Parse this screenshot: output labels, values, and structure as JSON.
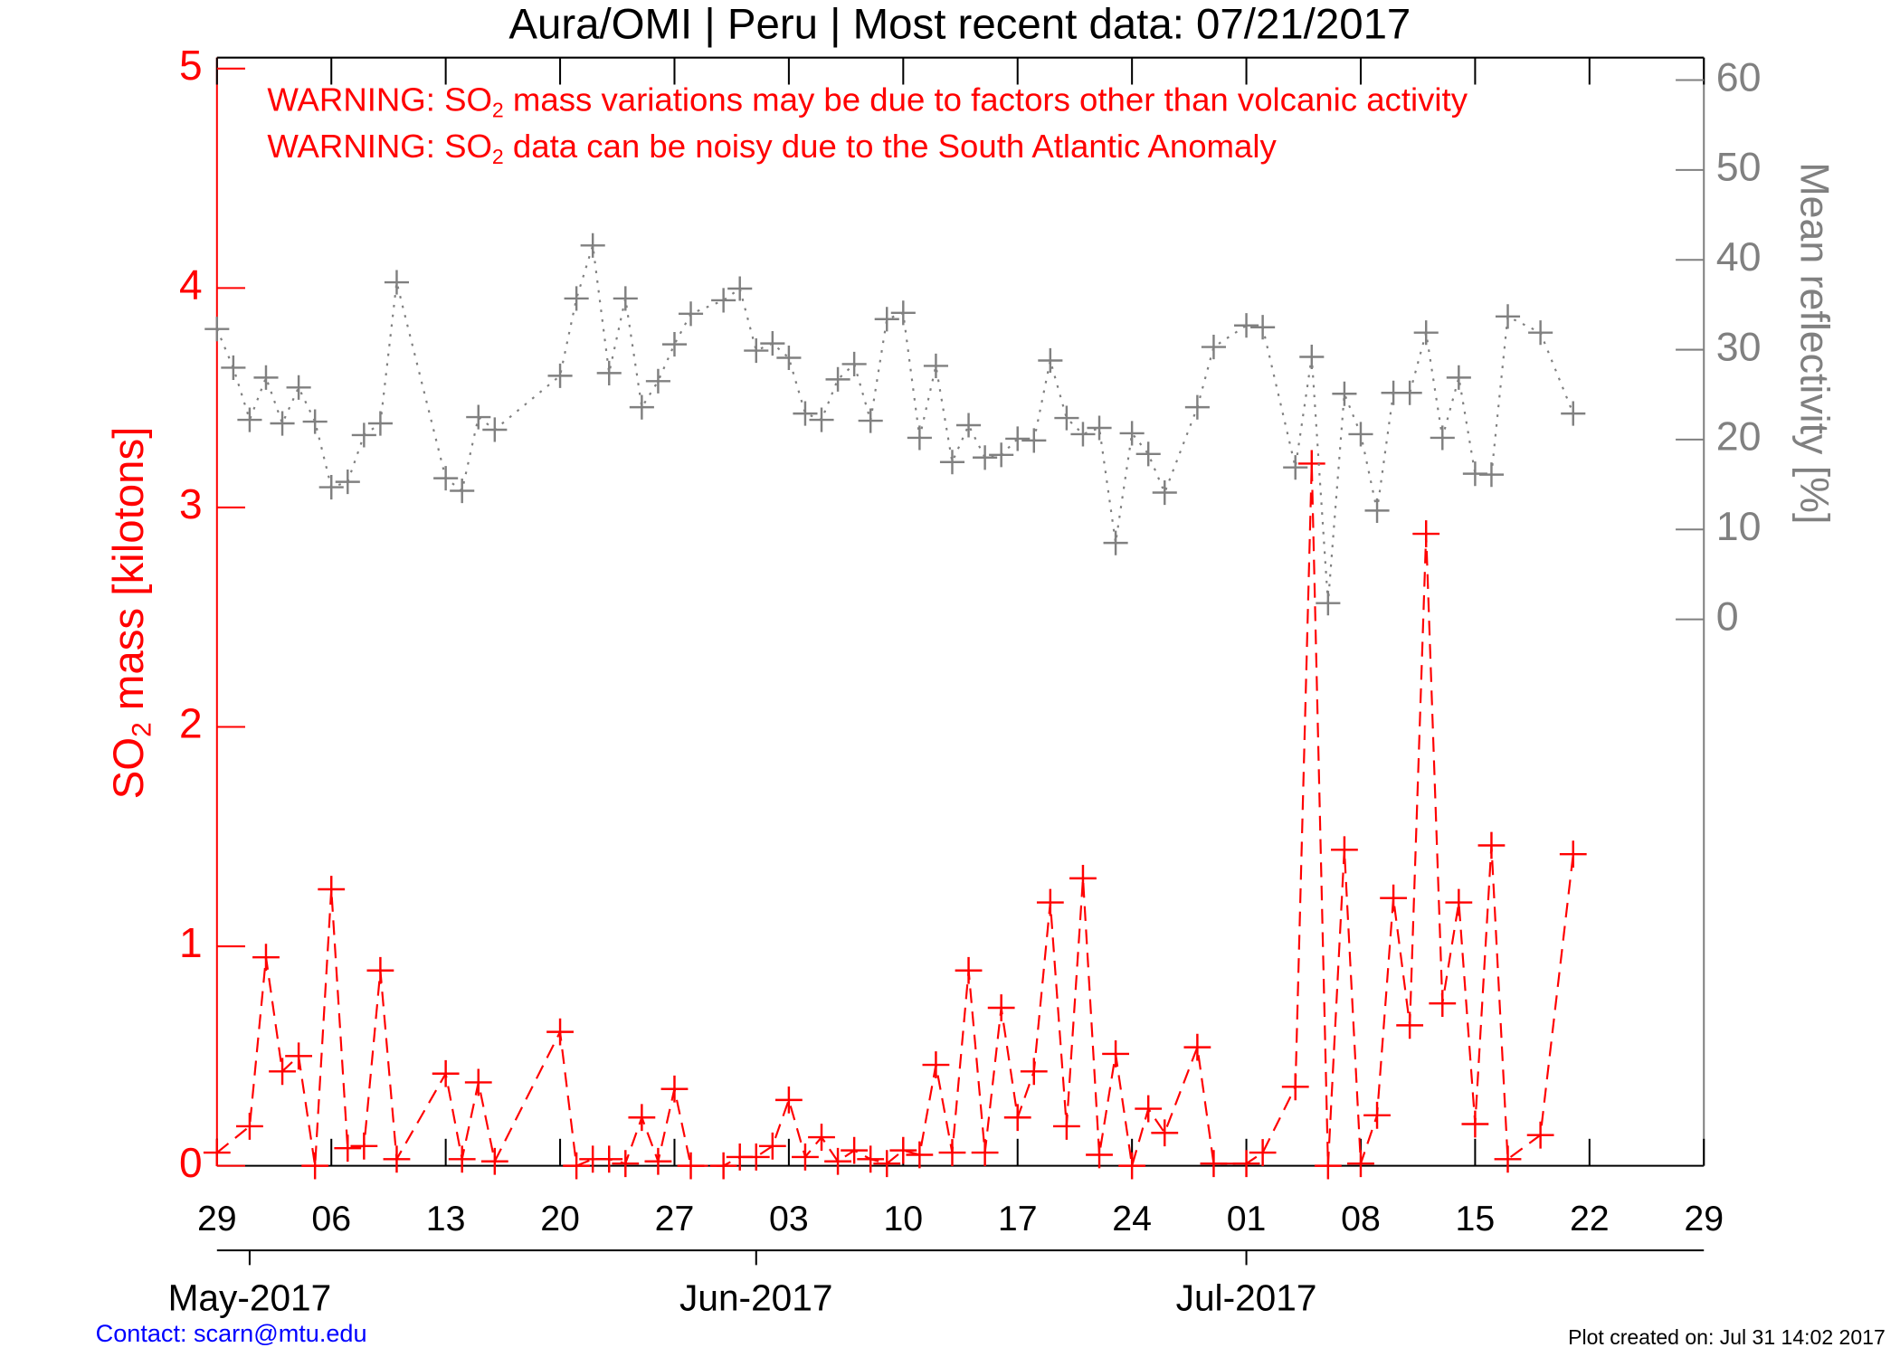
{
  "chart_data": {
    "type": "line",
    "title": "Aura/OMI | Peru | Most recent data: 07/21/2017",
    "warnings": [
      {
        "prefix": "WARNING: SO",
        "sub": "2",
        "suffix": " mass variations may be due to factors other than volcanic activity"
      },
      {
        "prefix": "WARNING: SO",
        "sub": "2",
        "suffix": " data can be noisy due to the South Atlantic Anomaly"
      }
    ],
    "ylabel": {
      "prefix": "SO",
      "sub": "2",
      "suffix": " mass [kilotons]"
    },
    "y2label": "Mean reflectivity [%]",
    "contact": "Contact: scarn@mtu.edu",
    "created": "Plot created on: Jul 31 14:02 2017",
    "xlim": [
      "2017-04-29",
      "2017-07-29"
    ],
    "xticks": [
      {
        "value": "2017-04-29",
        "label": "29"
      },
      {
        "value": "2017-05-06",
        "label": "06"
      },
      {
        "value": "2017-05-13",
        "label": "13"
      },
      {
        "value": "2017-05-20",
        "label": "20"
      },
      {
        "value": "2017-05-27",
        "label": "27"
      },
      {
        "value": "2017-06-03",
        "label": "03"
      },
      {
        "value": "2017-06-10",
        "label": "10"
      },
      {
        "value": "2017-06-17",
        "label": "17"
      },
      {
        "value": "2017-06-24",
        "label": "24"
      },
      {
        "value": "2017-07-01",
        "label": "01"
      },
      {
        "value": "2017-07-08",
        "label": "08"
      },
      {
        "value": "2017-07-15",
        "label": "15"
      },
      {
        "value": "2017-07-22",
        "label": "22"
      },
      {
        "value": "2017-07-29",
        "label": "29"
      }
    ],
    "month_ticks": [
      {
        "value": "2017-05-01",
        "label": "May-2017"
      },
      {
        "value": "2017-06-01",
        "label": "Jun-2017"
      },
      {
        "value": "2017-07-01",
        "label": "Jul-2017"
      }
    ],
    "ylim": [
      0,
      5.05
    ],
    "yticks": [
      0,
      1,
      2,
      3,
      4,
      5
    ],
    "y2lim": [
      -60.8,
      62.5
    ],
    "y2ticks": [
      0,
      10,
      20,
      30,
      40,
      50,
      60
    ],
    "series": [
      {
        "color": "#ff0000",
        "axis": "y",
        "dash": "12,7",
        "marker_size": 11,
        "x": [
          "2017-04-29",
          "2017-05-01",
          "2017-05-02",
          "2017-05-03",
          "2017-05-04",
          "2017-05-05",
          "2017-05-06",
          "2017-05-07",
          "2017-05-08",
          "2017-05-09",
          "2017-05-10",
          "2017-05-13",
          "2017-05-14",
          "2017-05-15",
          "2017-05-16",
          "2017-05-20",
          "2017-05-21",
          "2017-05-22",
          "2017-05-23",
          "2017-05-24",
          "2017-05-25",
          "2017-05-26",
          "2017-05-27",
          "2017-05-28",
          "2017-05-30",
          "2017-05-31",
          "2017-06-01",
          "2017-06-02",
          "2017-06-03",
          "2017-06-04",
          "2017-06-05",
          "2017-06-06",
          "2017-06-07",
          "2017-06-08",
          "2017-06-09",
          "2017-06-10",
          "2017-06-11",
          "2017-06-12",
          "2017-06-13",
          "2017-06-14",
          "2017-06-15",
          "2017-06-16",
          "2017-06-17",
          "2017-06-18",
          "2017-06-19",
          "2017-06-20",
          "2017-06-21",
          "2017-06-22",
          "2017-06-23",
          "2017-06-24",
          "2017-06-25",
          "2017-06-26",
          "2017-06-28",
          "2017-06-29",
          "2017-07-01",
          "2017-07-02",
          "2017-07-04",
          "2017-07-05",
          "2017-07-06",
          "2017-07-07",
          "2017-07-08",
          "2017-07-09",
          "2017-07-10",
          "2017-07-11",
          "2017-07-12",
          "2017-07-13",
          "2017-07-14",
          "2017-07-15",
          "2017-07-16",
          "2017-07-17",
          "2017-07-19",
          "2017-07-21"
        ],
        "values": [
          0.06,
          0.18,
          0.95,
          0.43,
          0.5,
          0.0,
          1.26,
          0.08,
          0.09,
          0.89,
          0.03,
          0.42,
          0.03,
          0.38,
          0.02,
          0.61,
          0.0,
          0.03,
          0.03,
          0.01,
          0.22,
          0.02,
          0.35,
          0.0,
          0.0,
          0.04,
          0.04,
          0.09,
          0.3,
          0.04,
          0.13,
          0.02,
          0.07,
          0.03,
          0.01,
          0.07,
          0.05,
          0.46,
          0.06,
          0.89,
          0.06,
          0.72,
          0.22,
          0.43,
          1.2,
          0.18,
          1.31,
          0.05,
          0.51,
          0.0,
          0.26,
          0.15,
          0.54,
          0.01,
          0.01,
          0.06,
          0.36,
          3.2,
          0.0,
          1.44,
          0.01,
          0.23,
          1.22,
          0.64,
          2.88,
          0.74,
          1.2,
          0.19,
          1.46,
          0.03,
          0.14,
          1.42
        ]
      },
      {
        "color": "#808080",
        "axis": "y2",
        "dash": "2,6",
        "marker_size": 10,
        "x": [
          "2017-04-29",
          "2017-04-30",
          "2017-05-01",
          "2017-05-02",
          "2017-05-03",
          "2017-05-04",
          "2017-05-05",
          "2017-05-06",
          "2017-05-07",
          "2017-05-08",
          "2017-05-09",
          "2017-05-10",
          "2017-05-13",
          "2017-05-14",
          "2017-05-15",
          "2017-05-16",
          "2017-05-20",
          "2017-05-21",
          "2017-05-22",
          "2017-05-23",
          "2017-05-24",
          "2017-05-25",
          "2017-05-26",
          "2017-05-27",
          "2017-05-28",
          "2017-05-30",
          "2017-05-31",
          "2017-06-01",
          "2017-06-02",
          "2017-06-03",
          "2017-06-04",
          "2017-06-05",
          "2017-06-06",
          "2017-06-07",
          "2017-06-08",
          "2017-06-09",
          "2017-06-10",
          "2017-06-11",
          "2017-06-12",
          "2017-06-13",
          "2017-06-14",
          "2017-06-15",
          "2017-06-16",
          "2017-06-17",
          "2017-06-18",
          "2017-06-19",
          "2017-06-20",
          "2017-06-21",
          "2017-06-22",
          "2017-06-23",
          "2017-06-24",
          "2017-06-25",
          "2017-06-26",
          "2017-06-28",
          "2017-06-29",
          "2017-07-01",
          "2017-07-02",
          "2017-07-04",
          "2017-07-05",
          "2017-07-06",
          "2017-07-07",
          "2017-07-08",
          "2017-07-09",
          "2017-07-10",
          "2017-07-11",
          "2017-07-12",
          "2017-07-13",
          "2017-07-14",
          "2017-07-15",
          "2017-07-16",
          "2017-07-17",
          "2017-07-19",
          "2017-07-21"
        ],
        "values": [
          32.3,
          28.0,
          22.2,
          26.9,
          21.8,
          25.8,
          22.0,
          14.7,
          15.3,
          20.5,
          21.8,
          37.5,
          15.7,
          14.3,
          22.5,
          21.1,
          27.1,
          35.7,
          41.6,
          27.4,
          35.7,
          23.6,
          26.5,
          30.6,
          34.0,
          35.5,
          36.8,
          29.9,
          30.7,
          29.1,
          22.9,
          22.2,
          26.7,
          28.4,
          22.1,
          33.4,
          34.1,
          20.2,
          28.2,
          17.5,
          21.6,
          18.0,
          18.3,
          20.1,
          19.9,
          28.8,
          22.4,
          20.6,
          21.3,
          8.5,
          20.7,
          18.4,
          14.1,
          23.6,
          30.3,
          32.7,
          32.5,
          16.9,
          29.2,
          1.8,
          25.1,
          20.6,
          12.1,
          25.2,
          25.2,
          31.9,
          20.2,
          26.9,
          16.2,
          16.1,
          33.7,
          31.9,
          22.9
        ]
      }
    ],
    "y_color": "#ff0000",
    "y2_color": "#808080",
    "contact_color": "#0000ff"
  }
}
